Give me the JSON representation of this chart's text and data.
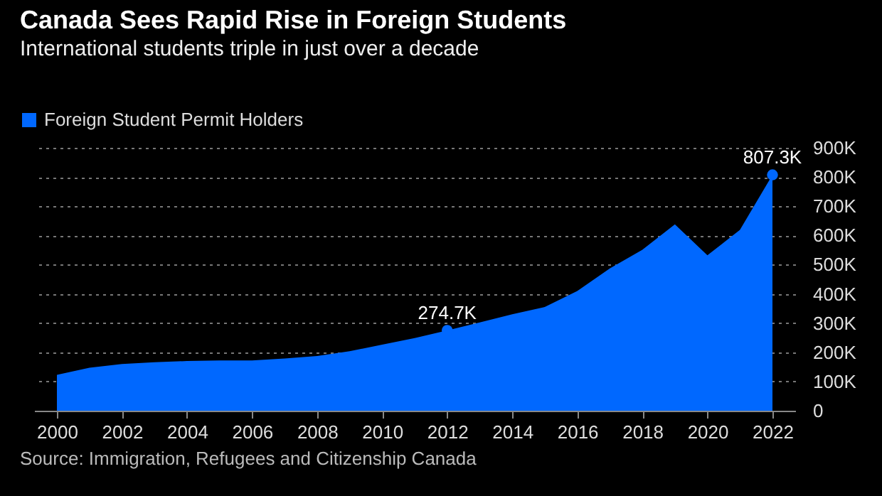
{
  "chart_data": {
    "type": "area",
    "title": "Canada Sees Rapid Rise in Foreign Students",
    "subtitle": "International students triple in just over a decade",
    "x": [
      2000,
      2001,
      2002,
      2003,
      2004,
      2005,
      2006,
      2007,
      2008,
      2009,
      2010,
      2011,
      2012,
      2013,
      2014,
      2015,
      2016,
      2017,
      2018,
      2019,
      2020,
      2021,
      2022
    ],
    "series": [
      {
        "name": "Foreign Student Permit Holders",
        "color": "#0068ff",
        "values": [
          123,
          147,
          160,
          166,
          170,
          172,
          172,
          179,
          187,
          204,
          226,
          249,
          274.7,
          302,
          330,
          355,
          410,
          487,
          551,
          638,
          532,
          619,
          807.3
        ]
      }
    ],
    "xlim": [
      1999.3,
      2022.7
    ],
    "xticks": [
      2000,
      2002,
      2004,
      2006,
      2008,
      2010,
      2012,
      2014,
      2016,
      2018,
      2020,
      2022
    ],
    "ylim": [
      0,
      900
    ],
    "yticks": [
      0,
      {
        "value": 100,
        "label": "100K"
      },
      {
        "value": 200,
        "label": "200K"
      },
      {
        "value": 300,
        "label": "300K"
      },
      {
        "value": 400,
        "label": "400K"
      },
      {
        "value": 500,
        "label": "500K"
      },
      {
        "value": 600,
        "label": "600K"
      },
      {
        "value": 700,
        "label": "700K"
      },
      {
        "value": 800,
        "label": "800K"
      },
      {
        "value": 900,
        "label": "900K"
      }
    ],
    "annotations": [
      {
        "text": "274.7K",
        "x": 2012,
        "y": 274.7
      },
      {
        "text": "807.3K",
        "x": 2022,
        "y": 807.3
      },
      "Source: Immigration, Refugees and Citizenship Canada"
    ],
    "grid": "y",
    "legend": "top left"
  }
}
